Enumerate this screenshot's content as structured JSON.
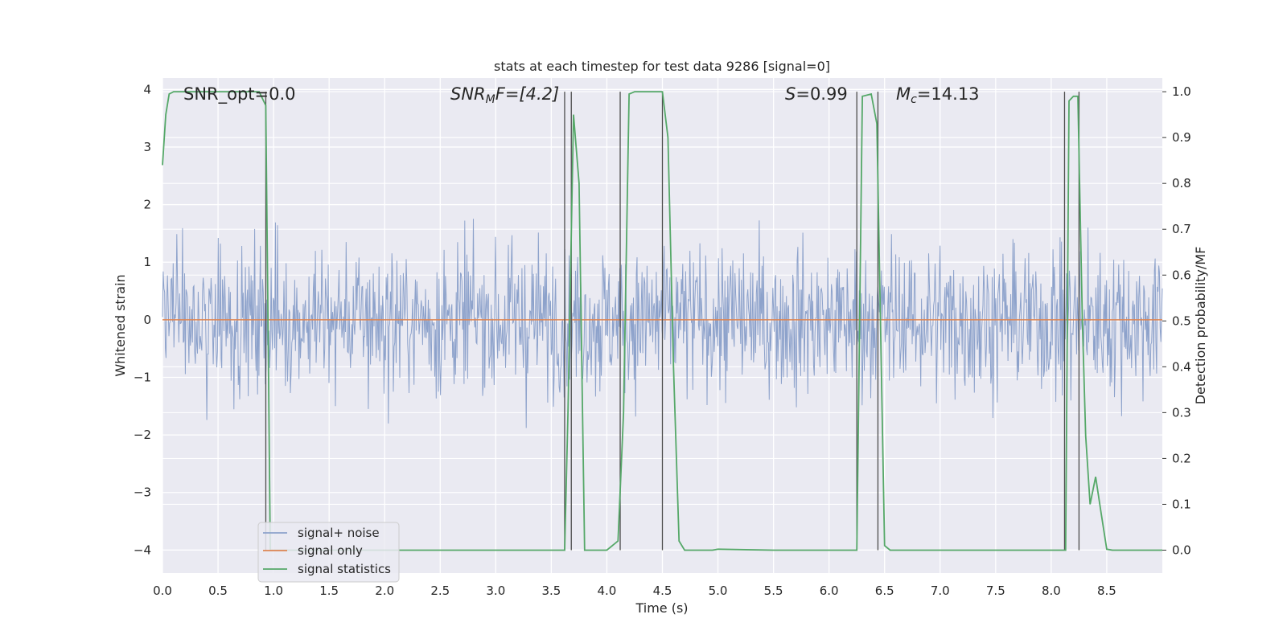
{
  "chart_data": {
    "type": "line",
    "title": "stats at each timestep for test data 9286 [signal=0]",
    "xlabel": "Time (s)",
    "ylabel_left": "Whitened strain",
    "ylabel_right": "Detection probability/MF",
    "xlim": [
      0.0,
      9.0
    ],
    "ylim_left": [
      -4.4,
      4.2
    ],
    "ylim_right": [
      -0.05,
      1.03
    ],
    "x_ticks": [
      "0.0",
      "0.5",
      "1.0",
      "1.5",
      "2.0",
      "2.5",
      "3.0",
      "3.5",
      "4.0",
      "4.5",
      "5.0",
      "5.5",
      "6.0",
      "6.5",
      "7.0",
      "7.5",
      "8.0",
      "8.5"
    ],
    "y_ticks_left": [
      "4",
      "3",
      "2",
      "1",
      "0",
      "−1",
      "−2",
      "−3",
      "−4"
    ],
    "y_ticks_right": [
      "1.0",
      "0.9",
      "0.8",
      "0.7",
      "0.6",
      "0.5",
      "0.4",
      "0.3",
      "0.2",
      "0.1",
      "0.0"
    ],
    "grid": true,
    "legend_position": "lower-left",
    "annotations": {
      "snr_opt": "SNR_opt=0.0",
      "snr_mf_var": "SNR",
      "snr_mf_sub": "M",
      "snr_mf_rest": "F=[4.2]",
      "s_var": "S",
      "s_rest": "=0.99",
      "mc_var": "M",
      "mc_sub": "c",
      "mc_rest": "=14.13"
    },
    "series": [
      {
        "name": "signal+ noise",
        "color": "#8da2cb",
        "description_range": [
          -4.0,
          3.85
        ],
        "typical_envelope": [
          -2.0,
          2.2
        ],
        "note": "dense noise trace across 0.0-9.0 s"
      },
      {
        "name": "signal only",
        "color": "#dd8452",
        "x": [
          0.0,
          9.0
        ],
        "y": [
          0.0,
          0.0
        ]
      },
      {
        "name": "signal statistics",
        "color": "#55a868",
        "axis": "right",
        "x": [
          0.0,
          0.03,
          0.06,
          0.1,
          0.2,
          0.5,
          0.8,
          0.87,
          0.93,
          0.95,
          0.97,
          1.0,
          1.5,
          2.0,
          2.5,
          3.0,
          3.4,
          3.62,
          3.65,
          3.7,
          3.75,
          3.8,
          4.0,
          4.1,
          4.15,
          4.2,
          4.25,
          4.5,
          4.55,
          4.6,
          4.65,
          4.7,
          4.95,
          5.0,
          5.5,
          6.0,
          6.2,
          6.25,
          6.3,
          6.38,
          6.43,
          6.5,
          6.55,
          6.6,
          7.0,
          7.5,
          8.0,
          8.1,
          8.13,
          8.16,
          8.2,
          8.24,
          8.28,
          8.31,
          8.35,
          8.4,
          8.45,
          8.5,
          8.55,
          9.0
        ],
        "y": [
          0.84,
          0.95,
          0.995,
          1.0,
          1.0,
          1.0,
          1.0,
          1.0,
          0.97,
          0.5,
          0.0,
          0.0,
          0.0,
          0.0,
          0.0,
          0.0,
          0.0,
          0.0,
          0.3,
          0.95,
          0.8,
          0.0,
          0.0,
          0.02,
          0.3,
          0.995,
          1.0,
          1.0,
          0.9,
          0.4,
          0.02,
          0.0,
          0.0,
          0.002,
          0.0,
          0.0,
          0.0,
          0.0,
          0.99,
          0.995,
          0.93,
          0.01,
          0.0,
          0.0,
          0.0,
          0.0,
          0.0,
          0.0,
          0.0,
          0.98,
          0.99,
          0.99,
          0.5,
          0.25,
          0.1,
          0.16,
          0.08,
          0.002,
          0.0,
          0.0
        ]
      }
    ],
    "vertical_markers": [
      0.93,
      3.62,
      3.68,
      4.12,
      4.5,
      6.25,
      6.44,
      8.12,
      8.25
    ],
    "legend": [
      "signal+ noise",
      "signal only",
      "signal statistics"
    ]
  }
}
